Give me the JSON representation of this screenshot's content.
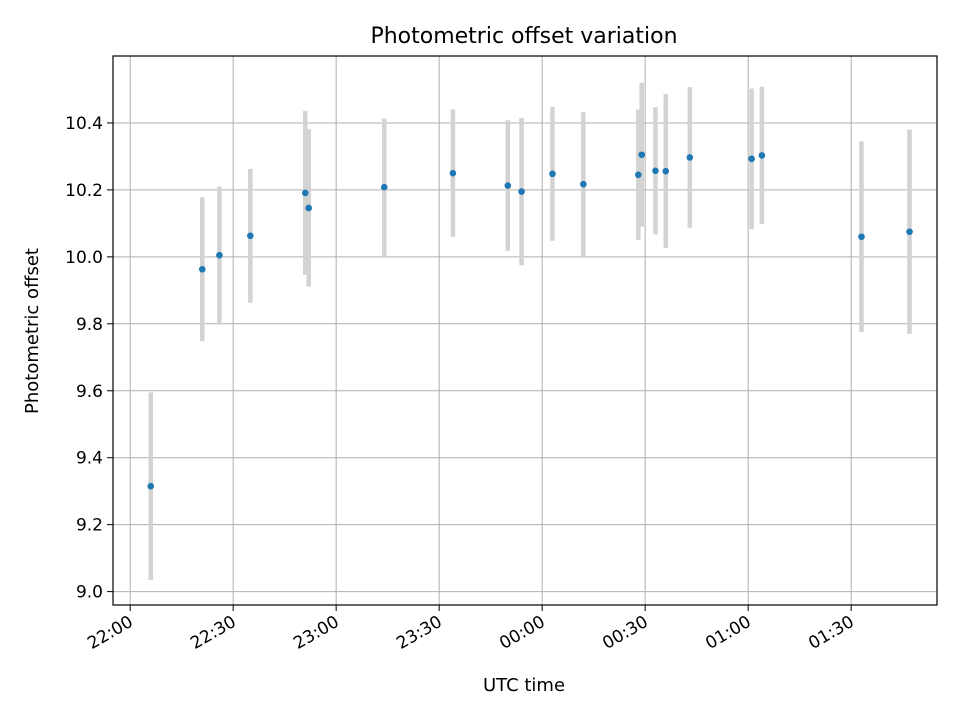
{
  "chart_data": {
    "type": "scatter",
    "title": "Photometric offset variation",
    "xlabel": "UTC time",
    "ylabel": "Photometric offset",
    "x_axis_type": "time",
    "x_range": [
      "21:55",
      "01:55"
    ],
    "xticks": [
      "22:00",
      "22:30",
      "23:00",
      "23:30",
      "00:00",
      "00:30",
      "01:00",
      "01:30"
    ],
    "ylim": [
      8.96,
      10.6
    ],
    "yticks": [
      "9.0",
      "9.2",
      "9.4",
      "9.6",
      "9.8",
      "10.0",
      "10.2",
      "10.4"
    ],
    "grid": true,
    "point_color": "#1f77b4",
    "errorbar_color": "#d3d3d3",
    "points": [
      {
        "x": "22:06",
        "y": 9.315,
        "err": 0.28
      },
      {
        "x": "22:21",
        "y": 9.963,
        "err": 0.215
      },
      {
        "x": "22:26",
        "y": 10.005,
        "err": 0.205
      },
      {
        "x": "22:35",
        "y": 10.063,
        "err": 0.2
      },
      {
        "x": "22:51",
        "y": 10.191,
        "err": 0.245
      },
      {
        "x": "22:52",
        "y": 10.146,
        "err": 0.235
      },
      {
        "x": "23:14",
        "y": 10.208,
        "err": 0.205
      },
      {
        "x": "23:34",
        "y": 10.25,
        "err": 0.19
      },
      {
        "x": "23:50",
        "y": 10.213,
        "err": 0.195
      },
      {
        "x": "23:54",
        "y": 10.195,
        "err": 0.22
      },
      {
        "x": "00:03",
        "y": 10.248,
        "err": 0.2
      },
      {
        "x": "00:12",
        "y": 10.217,
        "err": 0.215
      },
      {
        "x": "00:28",
        "y": 10.245,
        "err": 0.195
      },
      {
        "x": "00:29",
        "y": 10.305,
        "err": 0.215
      },
      {
        "x": "00:33",
        "y": 10.257,
        "err": 0.19
      },
      {
        "x": "00:36",
        "y": 10.256,
        "err": 0.23
      },
      {
        "x": "00:43",
        "y": 10.297,
        "err": 0.21
      },
      {
        "x": "01:01",
        "y": 10.293,
        "err": 0.21
      },
      {
        "x": "01:04",
        "y": 10.303,
        "err": 0.205
      },
      {
        "x": "01:33",
        "y": 10.06,
        "err": 0.285
      },
      {
        "x": "01:47",
        "y": 10.075,
        "err": 0.305
      }
    ]
  }
}
